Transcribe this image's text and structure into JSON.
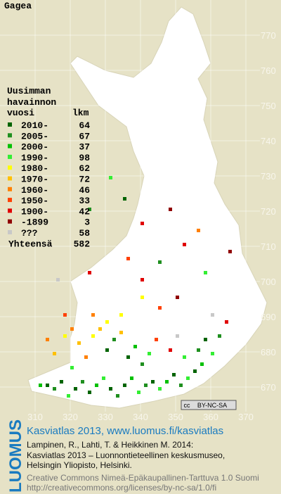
{
  "title": "Gagea",
  "legend": {
    "heading": [
      "Uusimman",
      "havainnon"
    ],
    "col_label": "vuosi",
    "col_count": "lkm",
    "rows": [
      {
        "label": "2010-",
        "count": 64,
        "color": "#006400"
      },
      {
        "label": "2005-",
        "count": 67,
        "color": "#1f8f1f"
      },
      {
        "label": "2000-",
        "count": 37,
        "color": "#00c000"
      },
      {
        "label": "1990-",
        "count": 98,
        "color": "#33ee33"
      },
      {
        "label": "1980-",
        "count": 62,
        "color": "#ffff00"
      },
      {
        "label": "1970-",
        "count": 72,
        "color": "#ffc000"
      },
      {
        "label": "1960-",
        "count": 46,
        "color": "#ff8000"
      },
      {
        "label": "1950-",
        "count": 33,
        "color": "#ff4000"
      },
      {
        "label": "1900-",
        "count": 42,
        "color": "#e00000"
      },
      {
        "label": "-1899",
        "count": 3,
        "color": "#900000"
      },
      {
        "label": "???",
        "count": 58,
        "color": "#c8c8c8"
      }
    ],
    "total_label": "Yhteensä",
    "total": 582
  },
  "xticks": [
    310,
    320,
    330,
    340,
    350,
    360,
    370
  ],
  "yticks": [
    670,
    680,
    690,
    700,
    710,
    720,
    730,
    740,
    750,
    760,
    770
  ],
  "squares": [
    [
      311,
      670,
      2
    ],
    [
      313,
      670,
      0
    ],
    [
      315,
      669,
      1
    ],
    [
      317,
      671,
      0
    ],
    [
      319,
      667,
      3
    ],
    [
      321,
      669,
      0
    ],
    [
      323,
      671,
      1
    ],
    [
      325,
      668,
      0
    ],
    [
      327,
      670,
      2
    ],
    [
      329,
      672,
      3
    ],
    [
      331,
      669,
      0
    ],
    [
      333,
      667,
      1
    ],
    [
      335,
      670,
      0
    ],
    [
      337,
      672,
      2
    ],
    [
      339,
      668,
      3
    ],
    [
      341,
      670,
      1
    ],
    [
      343,
      671,
      0
    ],
    [
      345,
      669,
      3
    ],
    [
      347,
      671,
      2
    ],
    [
      349,
      673,
      0
    ],
    [
      351,
      670,
      1
    ],
    [
      353,
      672,
      3
    ],
    [
      355,
      674,
      0
    ],
    [
      357,
      676,
      2
    ],
    [
      320,
      675,
      3
    ],
    [
      324,
      678,
      6
    ],
    [
      322,
      682,
      5
    ],
    [
      320,
      686,
      6
    ],
    [
      318,
      684,
      4
    ],
    [
      326,
      684,
      4
    ],
    [
      328,
      686,
      5
    ],
    [
      330,
      680,
      0
    ],
    [
      332,
      683,
      1
    ],
    [
      334,
      685,
      5
    ],
    [
      336,
      678,
      0
    ],
    [
      338,
      681,
      2
    ],
    [
      340,
      676,
      1
    ],
    [
      342,
      679,
      3
    ],
    [
      330,
      688,
      4
    ],
    [
      334,
      690,
      4
    ],
    [
      326,
      690,
      6
    ],
    [
      344,
      683,
      7
    ],
    [
      348,
      680,
      8
    ],
    [
      350,
      684,
      10
    ],
    [
      352,
      678,
      3
    ],
    [
      356,
      680,
      1
    ],
    [
      358,
      683,
      0
    ],
    [
      360,
      679,
      3
    ],
    [
      362,
      684,
      1
    ],
    [
      364,
      688,
      8
    ],
    [
      360,
      690,
      10
    ],
    [
      345,
      692,
      7
    ],
    [
      350,
      695,
      9
    ],
    [
      340,
      700,
      8
    ],
    [
      345,
      705,
      1
    ],
    [
      358,
      702,
      3
    ],
    [
      352,
      710,
      8
    ],
    [
      365,
      708,
      9
    ],
    [
      356,
      714,
      6
    ],
    [
      340,
      716,
      8
    ],
    [
      348,
      720,
      9
    ],
    [
      335,
      723,
      0
    ],
    [
      331,
      729,
      3
    ],
    [
      325,
      720,
      1
    ],
    [
      336,
      706,
      7
    ],
    [
      325,
      702,
      8
    ],
    [
      316,
      700,
      10
    ],
    [
      318,
      690,
      7
    ],
    [
      340,
      695,
      4
    ],
    [
      315,
      679,
      5
    ],
    [
      313,
      683,
      6
    ]
  ],
  "license_badge": {
    "cc": "cc",
    "text": "BY-NC-SA"
  },
  "footer": {
    "logo": "LUOMUS",
    "link": "Kasviatlas 2013, www.luomus.fi/kasviatlas",
    "citation": [
      "Lampinen, R., Lahti, T. & Heikkinen M. 2014:",
      "Kasviatlas 2013 – Luonnontieteellinen keskusmuseo,",
      "Helsingin Yliopisto, Helsinki."
    ],
    "license": [
      "Creative Commons Nimeä-Epäkaupallinen-Tarttuva 1.0 Suomi",
      "http://creativecommons.org/licenses/by-nc-sa/1.0/fi"
    ]
  }
}
